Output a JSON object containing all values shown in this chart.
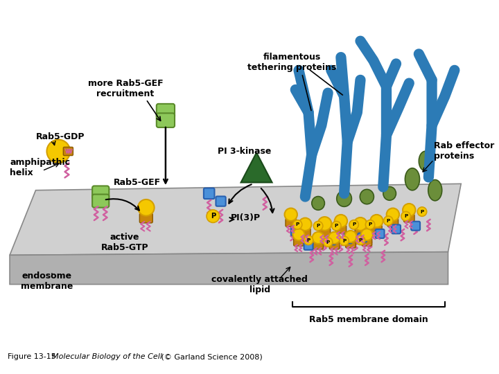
{
  "figure_title": "Figure 13-15",
  "caption_italic": "Molecular Biology of the Cell",
  "caption_rest": " (© Garland Science 2008)",
  "bg_color": "#ffffff",
  "labels": {
    "rab5_gdp": "Rab5-GDP",
    "rab5_gef": "Rab5-GEF",
    "amphipathic": "amphipathic\nhelix",
    "more_rab5": "more Rab5-GEF\nrecruitment",
    "pi3k": "PI 3-kinase",
    "pi3p": "PI(3)P",
    "active_rab5": "active\nRab5-GTP",
    "endosome": "endosome\nmembrane",
    "covalent": "covalently attached\nlipid",
    "rab5_domain": "Rab5 membrane domain",
    "filamentous": "filamentous\ntethering proteins",
    "rab_effector": "Rab effector\nproteins"
  },
  "colors": {
    "yellow": "#F5C800",
    "yellow_edge": "#D4A000",
    "brown": "#C8860A",
    "brown_edge": "#8B5A00",
    "light_green": "#8DC85A",
    "green_edge": "#5A8A2A",
    "dark_green": "#2A6A2A",
    "dark_green_edge": "#1A4A1A",
    "blue_protein": "#4A90D9",
    "blue_tether": "#2C7BB6",
    "blue_tether_edge": "#1A5A96",
    "pink": "#D060A0",
    "mem_top": "#D0D0D0",
    "mem_side": "#B0B0B0",
    "mem_front": "#C0C0C0",
    "mem_edge": "#888888",
    "olive_green": "#6B8E3A"
  }
}
